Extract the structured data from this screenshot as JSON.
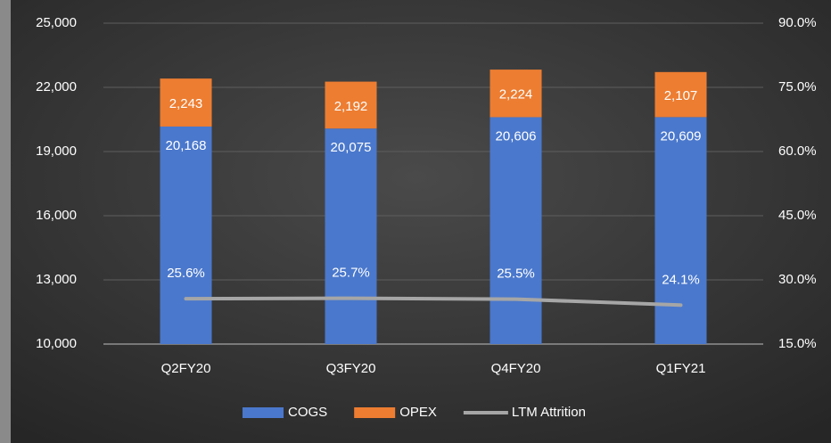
{
  "chart_data": {
    "type": "stacked-bar-line",
    "categories": [
      "Q2FY20",
      "Q3FY20",
      "Q4FY20",
      "Q1FY21"
    ],
    "series": [
      {
        "name": "COGS",
        "color": "#4a78cc",
        "type": "bar",
        "values": [
          20168,
          20075,
          20606,
          20609
        ],
        "value_labels": [
          "20,168",
          "20,075",
          "20,606",
          "20,609"
        ]
      },
      {
        "name": "OPEX",
        "color": "#ed7d31",
        "type": "bar",
        "values": [
          2243,
          2192,
          2224,
          2107
        ],
        "value_labels": [
          "2,243",
          "2,192",
          "2,224",
          "2,107"
        ]
      },
      {
        "name": "LTM Attrition",
        "color": "#a6a6a6",
        "type": "line",
        "axis": "y2",
        "values": [
          25.6,
          25.7,
          25.5,
          24.1
        ],
        "value_labels": [
          "25.6%",
          "25.7%",
          "25.5%",
          "24.1%"
        ]
      }
    ],
    "ylim": [
      10000,
      25000
    ],
    "yticks": [
      {
        "value": 10000,
        "label": "10,000"
      },
      {
        "value": 13000,
        "label": "13,000"
      },
      {
        "value": 16000,
        "label": "16,000"
      },
      {
        "value": 19000,
        "label": "19,000"
      },
      {
        "value": 22000,
        "label": "22,000"
      },
      {
        "value": 25000,
        "label": "25,000"
      }
    ],
    "y2lim": [
      15,
      90
    ],
    "y2ticks": [
      {
        "value": 15,
        "label": "15.0%"
      },
      {
        "value": 30,
        "label": "30.0%"
      },
      {
        "value": 45,
        "label": "45.0%"
      },
      {
        "value": 60,
        "label": "60.0%"
      },
      {
        "value": 75,
        "label": "75.0%"
      },
      {
        "value": 90,
        "label": "90.0%"
      }
    ],
    "grid": true,
    "legend": "bottom"
  }
}
